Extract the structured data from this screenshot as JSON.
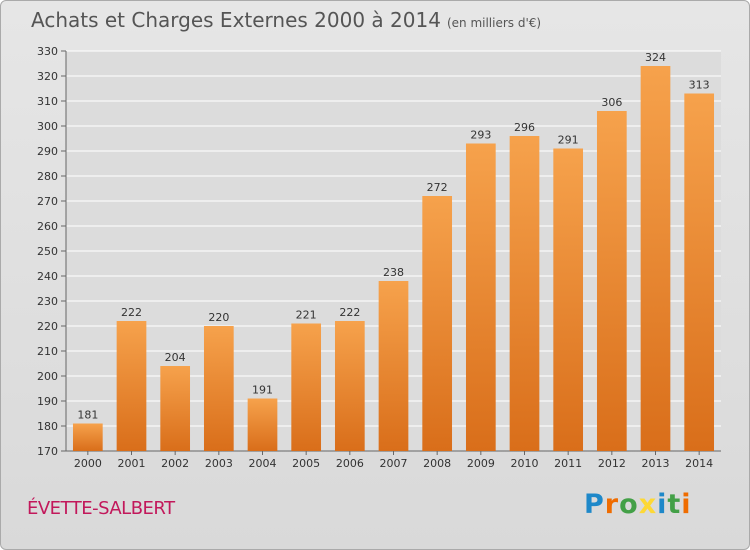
{
  "header": {
    "title": "Achats et Charges Externes 2000 à 2014",
    "unit": "(en milliers d'€)"
  },
  "footer": {
    "commune": "ÉVETTE-SALBERT",
    "logo": "Proxiti"
  },
  "colors": {
    "bar_light": "#f6a24c",
    "bar_dark": "#d96e1a",
    "grid": "#ffffff",
    "commune": "#c2185b",
    "logo_letters": [
      "#1e88c9",
      "#ef6c00",
      "#43a047",
      "#fdd835",
      "#1e88c9",
      "#43a047",
      "#ef6c00"
    ]
  },
  "chart_data": {
    "type": "bar",
    "title": "Achats et Charges Externes 2000 à 2014",
    "subtitle": "(en milliers d'€)",
    "categories": [
      "2000",
      "2001",
      "2002",
      "2003",
      "2004",
      "2005",
      "2006",
      "2007",
      "2008",
      "2009",
      "2010",
      "2011",
      "2012",
      "2013",
      "2014"
    ],
    "values": [
      181,
      222,
      204,
      220,
      191,
      221,
      222,
      238,
      272,
      293,
      296,
      291,
      306,
      324,
      313
    ],
    "ylim": [
      170,
      330
    ],
    "yticks": [
      170,
      180,
      190,
      200,
      210,
      220,
      230,
      240,
      250,
      260,
      270,
      280,
      290,
      300,
      310,
      320,
      330
    ],
    "grid": true,
    "data_labels": true
  }
}
